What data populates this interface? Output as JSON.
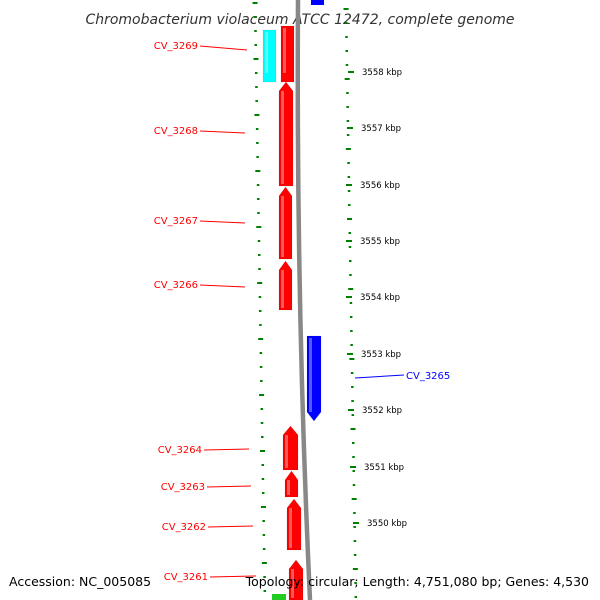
{
  "title": "Chromobacterium violaceum ATCC 12472, complete genome",
  "footer": {
    "accession": "Accession: NC_005085",
    "summary": "Topology: circular; Length: 4,751,080 bp; Genes: 4,530"
  },
  "colors": {
    "forward_cds": "#ff0000",
    "reverse_cds": "#0000ff",
    "rna": "#00ffff",
    "other": "#22cc22",
    "gc_dots": "#008000",
    "backbone": "#888888"
  },
  "ticks": [
    {
      "kbp": 3558,
      "label": "3558 kbp"
    },
    {
      "kbp": 3557,
      "label": "3557 kbp"
    },
    {
      "kbp": 3556,
      "label": "3556 kbp"
    },
    {
      "kbp": 3555,
      "label": "3555 kbp"
    },
    {
      "kbp": 3554,
      "label": "3554 kbp"
    },
    {
      "kbp": 3553,
      "label": "3553 kbp"
    },
    {
      "kbp": 3552,
      "label": "3552 kbp"
    },
    {
      "kbp": 3551,
      "label": "3551 kbp"
    },
    {
      "kbp": 3550,
      "label": "3550 kbp"
    }
  ],
  "genes": [
    {
      "name": "CV_3269",
      "label": "CV_3269",
      "strand": "+",
      "kind": "rna"
    },
    {
      "name": "CV_3269b",
      "label": "",
      "strand": "+",
      "kind": "cds"
    },
    {
      "name": "CV_3268",
      "label": "CV_3268",
      "strand": "+",
      "kind": "cds"
    },
    {
      "name": "CV_3267",
      "label": "CV_3267",
      "strand": "+",
      "kind": "cds"
    },
    {
      "name": "CV_3266",
      "label": "CV_3266",
      "strand": "+",
      "kind": "cds"
    },
    {
      "name": "CV_3265",
      "label": "CV_3265",
      "strand": "-",
      "kind": "cds"
    },
    {
      "name": "CV_3264",
      "label": "CV_3264",
      "strand": "+",
      "kind": "cds"
    },
    {
      "name": "CV_3263",
      "label": "CV_3263",
      "strand": "+",
      "kind": "cds"
    },
    {
      "name": "CV_3262",
      "label": "CV_3262",
      "strand": "+",
      "kind": "cds"
    },
    {
      "name": "CV_3261",
      "label": "CV_3261",
      "strand": "+",
      "kind": "cds"
    }
  ]
}
